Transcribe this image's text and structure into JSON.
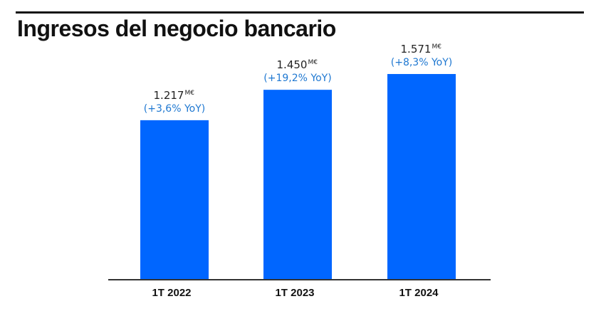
{
  "header": {
    "title": "Ingresos del negocio bancario"
  },
  "colors": {
    "bar": "#0066FF",
    "growth_text": "#1F78D1",
    "axis": "#333333",
    "text": "#222222"
  },
  "chart_data": {
    "type": "bar",
    "title": "Ingresos del negocio bancario",
    "categories": [
      "1T 2022",
      "1T 2023",
      "1T 2024"
    ],
    "values": [
      1217,
      1450,
      1571
    ],
    "value_labels": [
      "1.217",
      "1.450",
      "1.571"
    ],
    "unit": "M€",
    "growth_labels": [
      "(+3,6% YoY)",
      "(+19,2% YoY)",
      "(+8,3% YoY)"
    ],
    "xlabel": "",
    "ylabel": "",
    "ylim": [
      0,
      1800
    ],
    "grid": false
  }
}
